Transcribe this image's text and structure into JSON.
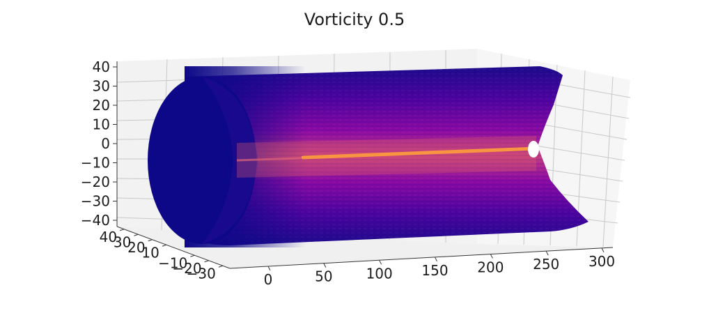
{
  "chart_data": {
    "type": "3d-surface",
    "title": "Vorticity 0.5",
    "colormap": "plasma",
    "colors": {
      "background": "#ffffff",
      "pane": "#f2f2f2",
      "grid": "#c8c8c8",
      "low": "#0d0887",
      "mid": "#7e03a8",
      "high": "#cc4778",
      "peak": "#f89540"
    },
    "axes": {
      "x": {
        "ticks": [
          0,
          50,
          100,
          150,
          200,
          250,
          300
        ],
        "range": [
          0,
          310
        ]
      },
      "y": {
        "ticks": [
          40,
          30,
          20,
          10,
          -10,
          -20,
          -30
        ],
        "tick_labels": [
          "40",
          "30",
          "20",
          "10",
          "−10",
          "−20",
          "−30"
        ],
        "range": [
          -35,
          45
        ]
      },
      "z": {
        "ticks": [
          40,
          30,
          20,
          10,
          0,
          -10,
          -20,
          -30,
          -40
        ],
        "tick_labels": [
          "40",
          "30",
          "20",
          "10",
          "0",
          "−10",
          "−20",
          "−30",
          "−40"
        ],
        "range": [
          -40,
          40
        ]
      }
    },
    "surface": {
      "shape": "cylinder",
      "radius": 40,
      "x_start": 0,
      "x_end": 300,
      "core_line_z": 0
    },
    "grid": true
  }
}
